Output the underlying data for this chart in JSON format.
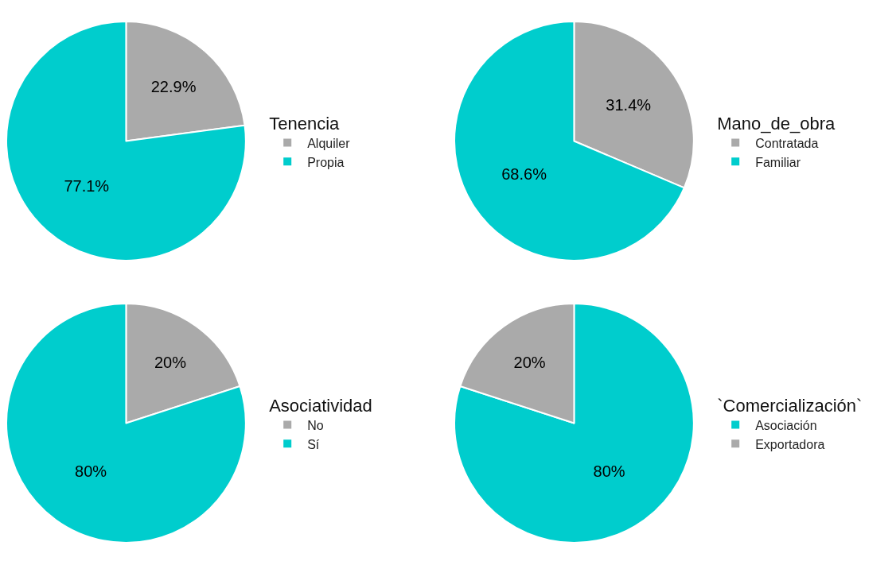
{
  "chart_data": [
    {
      "type": "pie",
      "legend_title": "Tenencia",
      "categories": [
        "Alquiler",
        "Propia"
      ],
      "values": [
        22.9,
        77.1
      ],
      "value_labels": [
        "22.9%",
        "77.1%"
      ],
      "colors": [
        "#aaaaaa",
        "#00cdcd"
      ],
      "legend": "right"
    },
    {
      "type": "pie",
      "legend_title": "Mano_de_obra",
      "categories": [
        "Contratada",
        "Familiar"
      ],
      "values": [
        31.4,
        68.6
      ],
      "value_labels": [
        "31.4%",
        "68.6%"
      ],
      "colors": [
        "#aaaaaa",
        "#00cdcd"
      ],
      "legend": "right"
    },
    {
      "type": "pie",
      "legend_title": "Asociatividad",
      "categories": [
        "No",
        "Sí"
      ],
      "values": [
        20,
        80
      ],
      "value_labels": [
        "20%",
        "80%"
      ],
      "colors": [
        "#aaaaaa",
        "#00cdcd"
      ],
      "legend": "right"
    },
    {
      "type": "pie",
      "legend_title": "`Comercialización`",
      "categories": [
        "Asociación",
        "Exportadora"
      ],
      "values": [
        80,
        20
      ],
      "value_labels": [
        "80%",
        "20%"
      ],
      "colors": [
        "#00cdcd",
        "#aaaaaa"
      ],
      "legend": "right"
    }
  ]
}
